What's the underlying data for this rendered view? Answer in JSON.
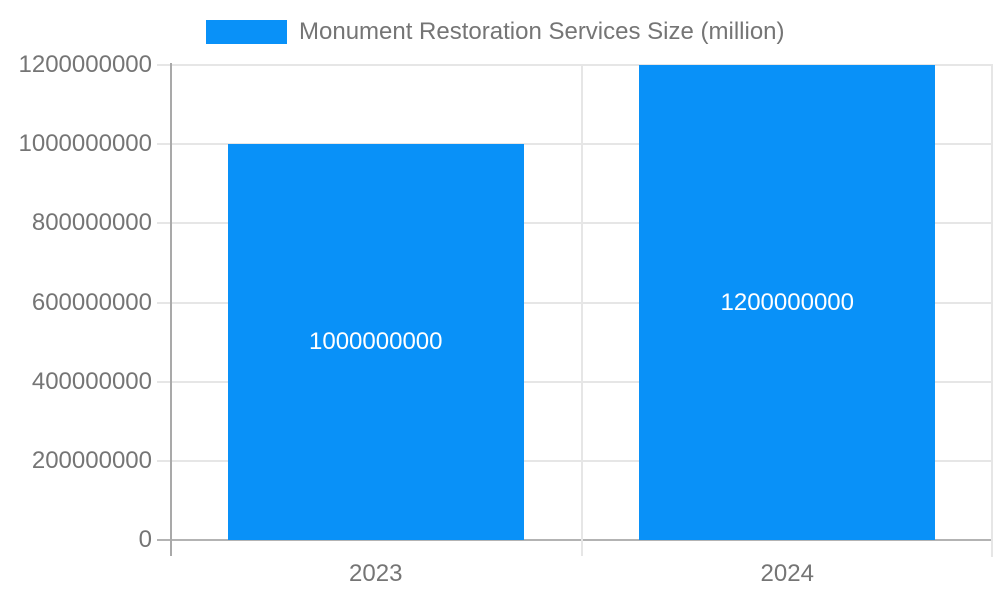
{
  "chart_data": {
    "type": "bar",
    "title": "Monument Restoration Services Size (million)",
    "categories": [
      "2023",
      "2024"
    ],
    "values": [
      1000000000,
      1200000000
    ],
    "bar_labels": [
      "1000000000",
      "1200000000"
    ],
    "ylim": [
      0,
      1200000000
    ],
    "yticks": [
      0,
      200000000,
      400000000,
      600000000,
      800000000,
      1000000000,
      1200000000
    ],
    "ytick_labels": [
      "0",
      "200000000",
      "400000000",
      "600000000",
      "800000000",
      "1000000000",
      "1200000000"
    ],
    "xlabel": "",
    "ylabel": "",
    "grid": true,
    "legend_position": "top",
    "colors": {
      "bar": "#0991f8",
      "bar_label": "#ffffff",
      "grid": "#e6e6e6",
      "x_axis": "#b3b3b3",
      "y_axis": "#a9a9a9",
      "text": "#757575",
      "background": "#ffffff"
    }
  }
}
